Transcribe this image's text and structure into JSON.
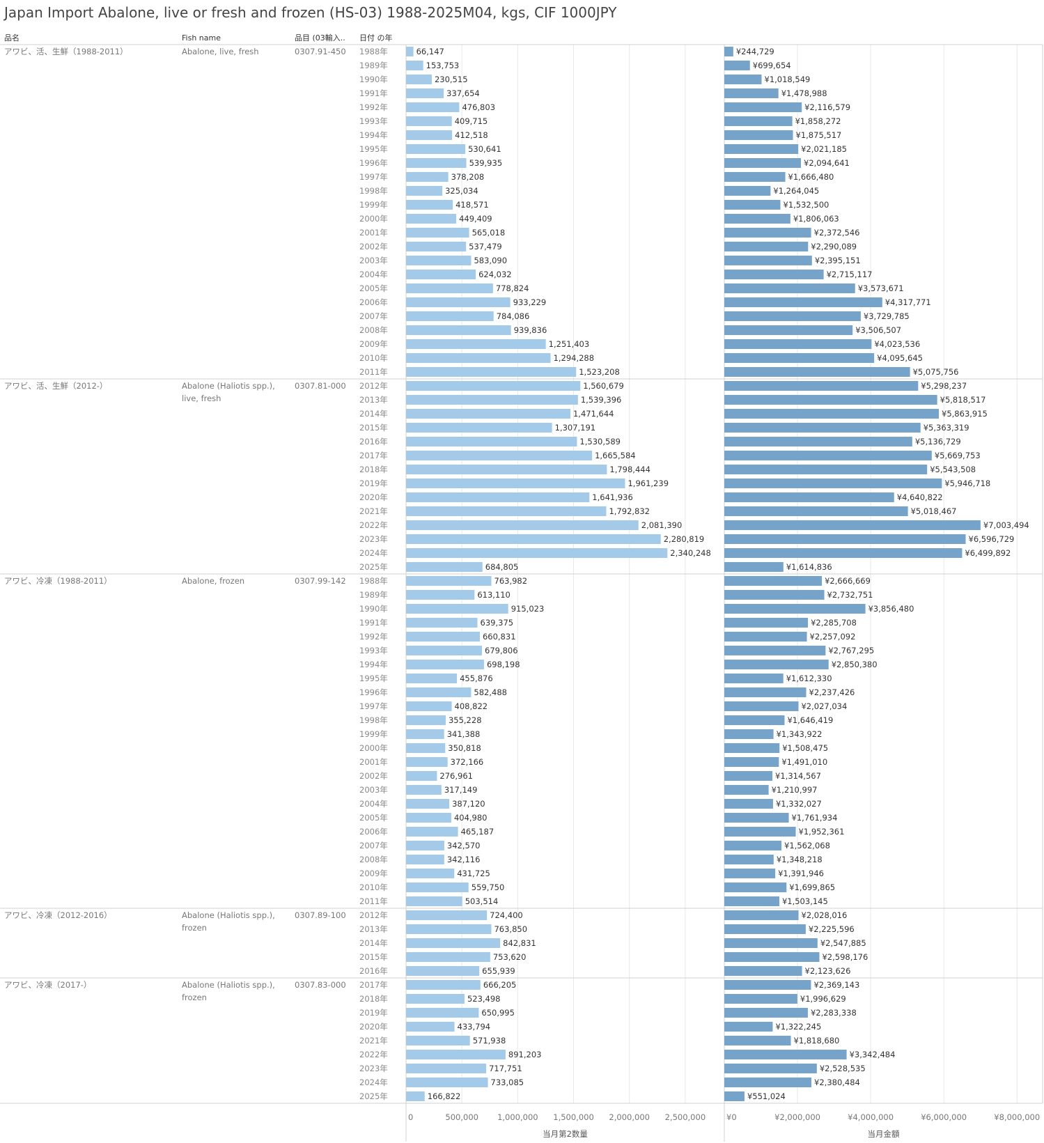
{
  "title": "Japan Import Abalone, live or fresh and frozen (HS-03) 1988-2025M04, kgs, CIF 1000JPY",
  "headers": {
    "product": "品名",
    "fish": "Fish name",
    "code": "品目 (03輸入..",
    "year": "日付 の年"
  },
  "colors": {
    "qty_bar": "#a3cbe9",
    "value_bar": "#76a3ca",
    "grid": "#e8e8e8",
    "rule": "#d0d0d0"
  },
  "chart_data": {
    "type": "bar",
    "orientation": "horizontal",
    "year_suffix": "年",
    "value_prefix": "¥",
    "measures": [
      {
        "key": "qty",
        "title": "当月第2数量",
        "xlim": [
          0,
          2850000
        ],
        "ticks": [
          0,
          500000,
          1000000,
          1500000,
          2000000,
          2500000
        ],
        "tick_labels": [
          "0",
          "500,000",
          "1,000,000",
          "1,500,000",
          "2,000,000",
          "2,500,000"
        ]
      },
      {
        "key": "value",
        "title": "当月金額",
        "xlim": [
          0,
          8700000
        ],
        "ticks": [
          0,
          2000000,
          4000000,
          6000000,
          8000000
        ],
        "tick_labels": [
          "¥0",
          "¥2,000,000",
          "¥4,000,000",
          "¥6,000,000",
          "¥8,000,000"
        ]
      }
    ],
    "groups": [
      {
        "product": "アワビ、活、生鮮（1988-2011）",
        "fish_name": [
          "Abalone, live, fresh"
        ],
        "code": "0307.91-450",
        "start_year": 1988,
        "qty": [
          66147,
          153753,
          230515,
          337654,
          476803,
          409715,
          412518,
          530641,
          539935,
          378208,
          325034,
          418571,
          449409,
          565018,
          537479,
          583090,
          624032,
          778824,
          933229,
          784086,
          939836,
          1251403,
          1294288,
          1523208
        ],
        "value": [
          244729,
          699654,
          1018549,
          1478988,
          2116579,
          1858272,
          1875517,
          2021185,
          2094641,
          1666480,
          1264045,
          1532500,
          1806063,
          2372546,
          2290089,
          2395151,
          2715117,
          3573671,
          4317771,
          3729785,
          3506507,
          4023536,
          4095645,
          5075756
        ]
      },
      {
        "product": "アワビ、活、生鮮（2012-）",
        "fish_name": [
          "Abalone (Haliotis spp.),",
          "live, fresh"
        ],
        "code": "0307.81-000",
        "start_year": 2012,
        "qty": [
          1560679,
          1539396,
          1471644,
          1307191,
          1530589,
          1665584,
          1798444,
          1961239,
          1641936,
          1792832,
          2081390,
          2280819,
          2340248,
          684805
        ],
        "value": [
          5298237,
          5818517,
          5863915,
          5363319,
          5136729,
          5669753,
          5543508,
          5946718,
          4640822,
          5018467,
          7003494,
          6596729,
          6499892,
          1614836
        ]
      },
      {
        "product": "アワビ、冷凍（1988-2011）",
        "fish_name": [
          "Abalone, frozen"
        ],
        "code": "0307.99-142",
        "start_year": 1988,
        "qty": [
          763982,
          613110,
          915023,
          639375,
          660831,
          679806,
          698198,
          455876,
          582488,
          408822,
          355228,
          341388,
          350818,
          372166,
          276961,
          317149,
          387120,
          404980,
          465187,
          342570,
          342116,
          431725,
          559750,
          503514
        ],
        "value": [
          2666669,
          2732751,
          3856480,
          2285708,
          2257092,
          2767295,
          2850380,
          1612330,
          2237426,
          2027034,
          1646419,
          1343922,
          1508475,
          1491010,
          1314567,
          1210997,
          1332027,
          1761934,
          1952361,
          1562068,
          1348218,
          1391946,
          1699865,
          1503145
        ]
      },
      {
        "product": "アワビ、冷凍（2012-2016）",
        "fish_name": [
          "Abalone (Haliotis spp.),",
          "frozen"
        ],
        "code": "0307.89-100",
        "start_year": 2012,
        "qty": [
          724400,
          763850,
          842831,
          753620,
          655939
        ],
        "value": [
          2028016,
          2225596,
          2547885,
          2598176,
          2123626
        ]
      },
      {
        "product": "アワビ、冷凍（2017-）",
        "fish_name": [
          "Abalone (Haliotis spp.),",
          "frozen"
        ],
        "code": "0307.83-000",
        "start_year": 2017,
        "qty": [
          666205,
          523498,
          650995,
          433794,
          571938,
          891203,
          717751,
          733085,
          166822
        ],
        "value": [
          2369143,
          1996629,
          2283338,
          1322245,
          1818680,
          3342484,
          2528535,
          2380484,
          551024
        ]
      }
    ]
  }
}
